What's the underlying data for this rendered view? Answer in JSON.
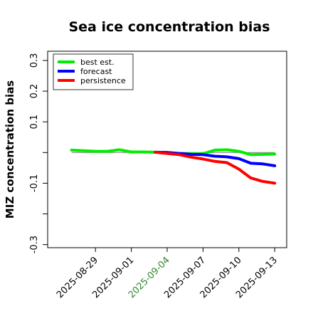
{
  "chart_data": {
    "type": "line",
    "title": "Sea ice concentration bias",
    "xlabel": "",
    "ylabel": "MIZ concentration bias",
    "ylim": [
      -0.31,
      0.33
    ],
    "xlim": [
      "2025-08-25",
      "2025-09-14"
    ],
    "x_ticks": [
      {
        "date": "2025-08-29",
        "label": "2025-08-29",
        "color": "#000000"
      },
      {
        "date": "2025-09-01",
        "label": "2025-09-01",
        "color": "#000000"
      },
      {
        "date": "2025-09-04",
        "label": "2025-09-04",
        "color": "#2e8b2e"
      },
      {
        "date": "2025-09-07",
        "label": "2025-09-07",
        "color": "#000000"
      },
      {
        "date": "2025-09-10",
        "label": "2025-09-10",
        "color": "#000000"
      },
      {
        "date": "2025-09-13",
        "label": "2025-09-13",
        "color": "#000000"
      }
    ],
    "y_ticks": [
      {
        "value": 0.3,
        "label": "0.3"
      },
      {
        "value": 0.2,
        "label": "0.2"
      },
      {
        "value": 0.1,
        "label": "0.1"
      },
      {
        "value": 0.0,
        "label": ""
      },
      {
        "value": -0.1,
        "label": "-0.1"
      },
      {
        "value": -0.2,
        "label": ""
      },
      {
        "value": -0.3,
        "label": "-0.3"
      }
    ],
    "zero_line": true,
    "grid": false,
    "legend": {
      "position": "top-left"
    },
    "series": [
      {
        "name": "best est.",
        "color": "#00ee00",
        "x": [
          "2025-08-27",
          "2025-08-28",
          "2025-08-29",
          "2025-08-30",
          "2025-08-31",
          "2025-09-01",
          "2025-09-02",
          "2025-09-03",
          "2025-09-04",
          "2025-09-05",
          "2025-09-06",
          "2025-09-07",
          "2025-09-08",
          "2025-09-09",
          "2025-09-10",
          "2025-09-11",
          "2025-09-12",
          "2025-09-13"
        ],
        "values": [
          0.008,
          0.006,
          0.004,
          0.004,
          0.009,
          0.002,
          0.002,
          0.001,
          0.0,
          -0.003,
          -0.004,
          -0.004,
          0.008,
          0.009,
          0.004,
          -0.007,
          -0.006,
          -0.005
        ]
      },
      {
        "name": "forecast",
        "color": "#0000ff",
        "x": [
          "2025-09-03",
          "2025-09-04",
          "2025-09-05",
          "2025-09-06",
          "2025-09-07",
          "2025-09-08",
          "2025-09-09",
          "2025-09-10",
          "2025-09-11",
          "2025-09-12",
          "2025-09-13"
        ],
        "values": [
          0.001,
          0.0,
          -0.003,
          -0.006,
          -0.007,
          -0.012,
          -0.014,
          -0.02,
          -0.035,
          -0.037,
          -0.043
        ]
      },
      {
        "name": "persistence",
        "color": "#ff0000",
        "x": [
          "2025-09-03",
          "2025-09-04",
          "2025-09-05",
          "2025-09-06",
          "2025-09-07",
          "2025-09-08",
          "2025-09-09",
          "2025-09-10",
          "2025-09-11",
          "2025-09-12",
          "2025-09-13"
        ],
        "values": [
          0.001,
          -0.003,
          -0.007,
          -0.015,
          -0.021,
          -0.029,
          -0.033,
          -0.054,
          -0.083,
          -0.094,
          -0.1
        ]
      }
    ]
  }
}
